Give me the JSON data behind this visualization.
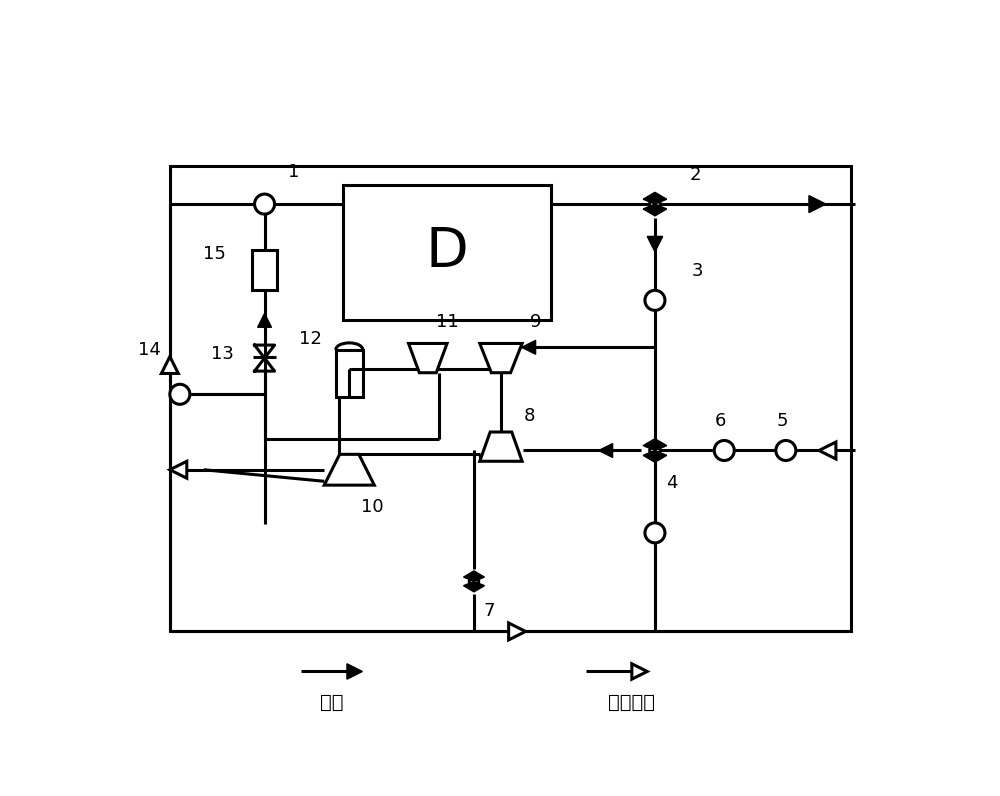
{
  "bg_color": "#ffffff",
  "lw": 2.2,
  "legend_solid": "废气",
  "legend_open": "压缩空气",
  "D_label": "D",
  "fontsize_label": 13,
  "fontsize_D": 40
}
